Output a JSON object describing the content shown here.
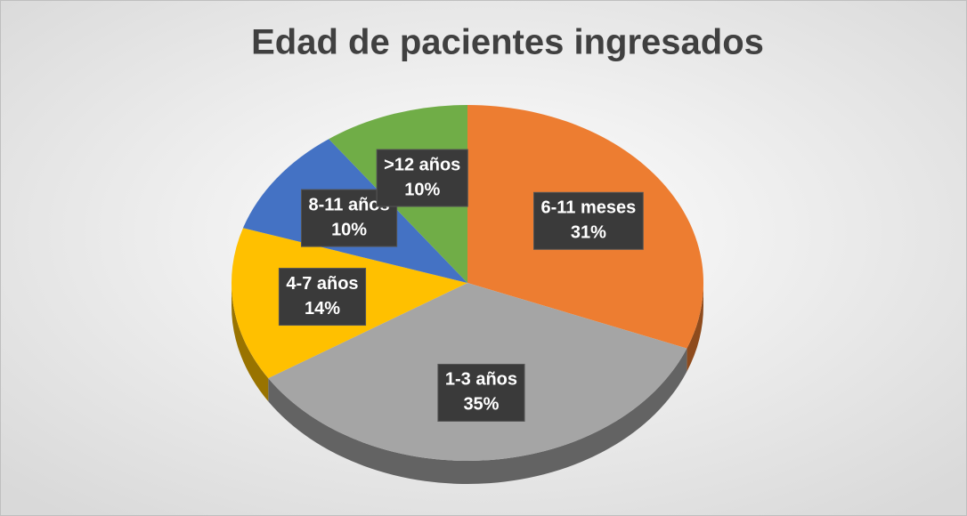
{
  "chart_data": {
    "type": "pie",
    "title": "Edad de pacientes ingresados",
    "categories": [
      "6-11 meses",
      "1-3 años",
      "4-7 años",
      "8-11 años",
      ">12 años"
    ],
    "values": [
      31,
      35,
      14,
      10,
      10
    ],
    "value_labels": [
      "31%",
      "35%",
      "14%",
      "10%",
      "10%"
    ],
    "colors": [
      "#ED7D31",
      "#A5A5A5",
      "#FFC000",
      "#4472C4",
      "#70AD47"
    ]
  }
}
